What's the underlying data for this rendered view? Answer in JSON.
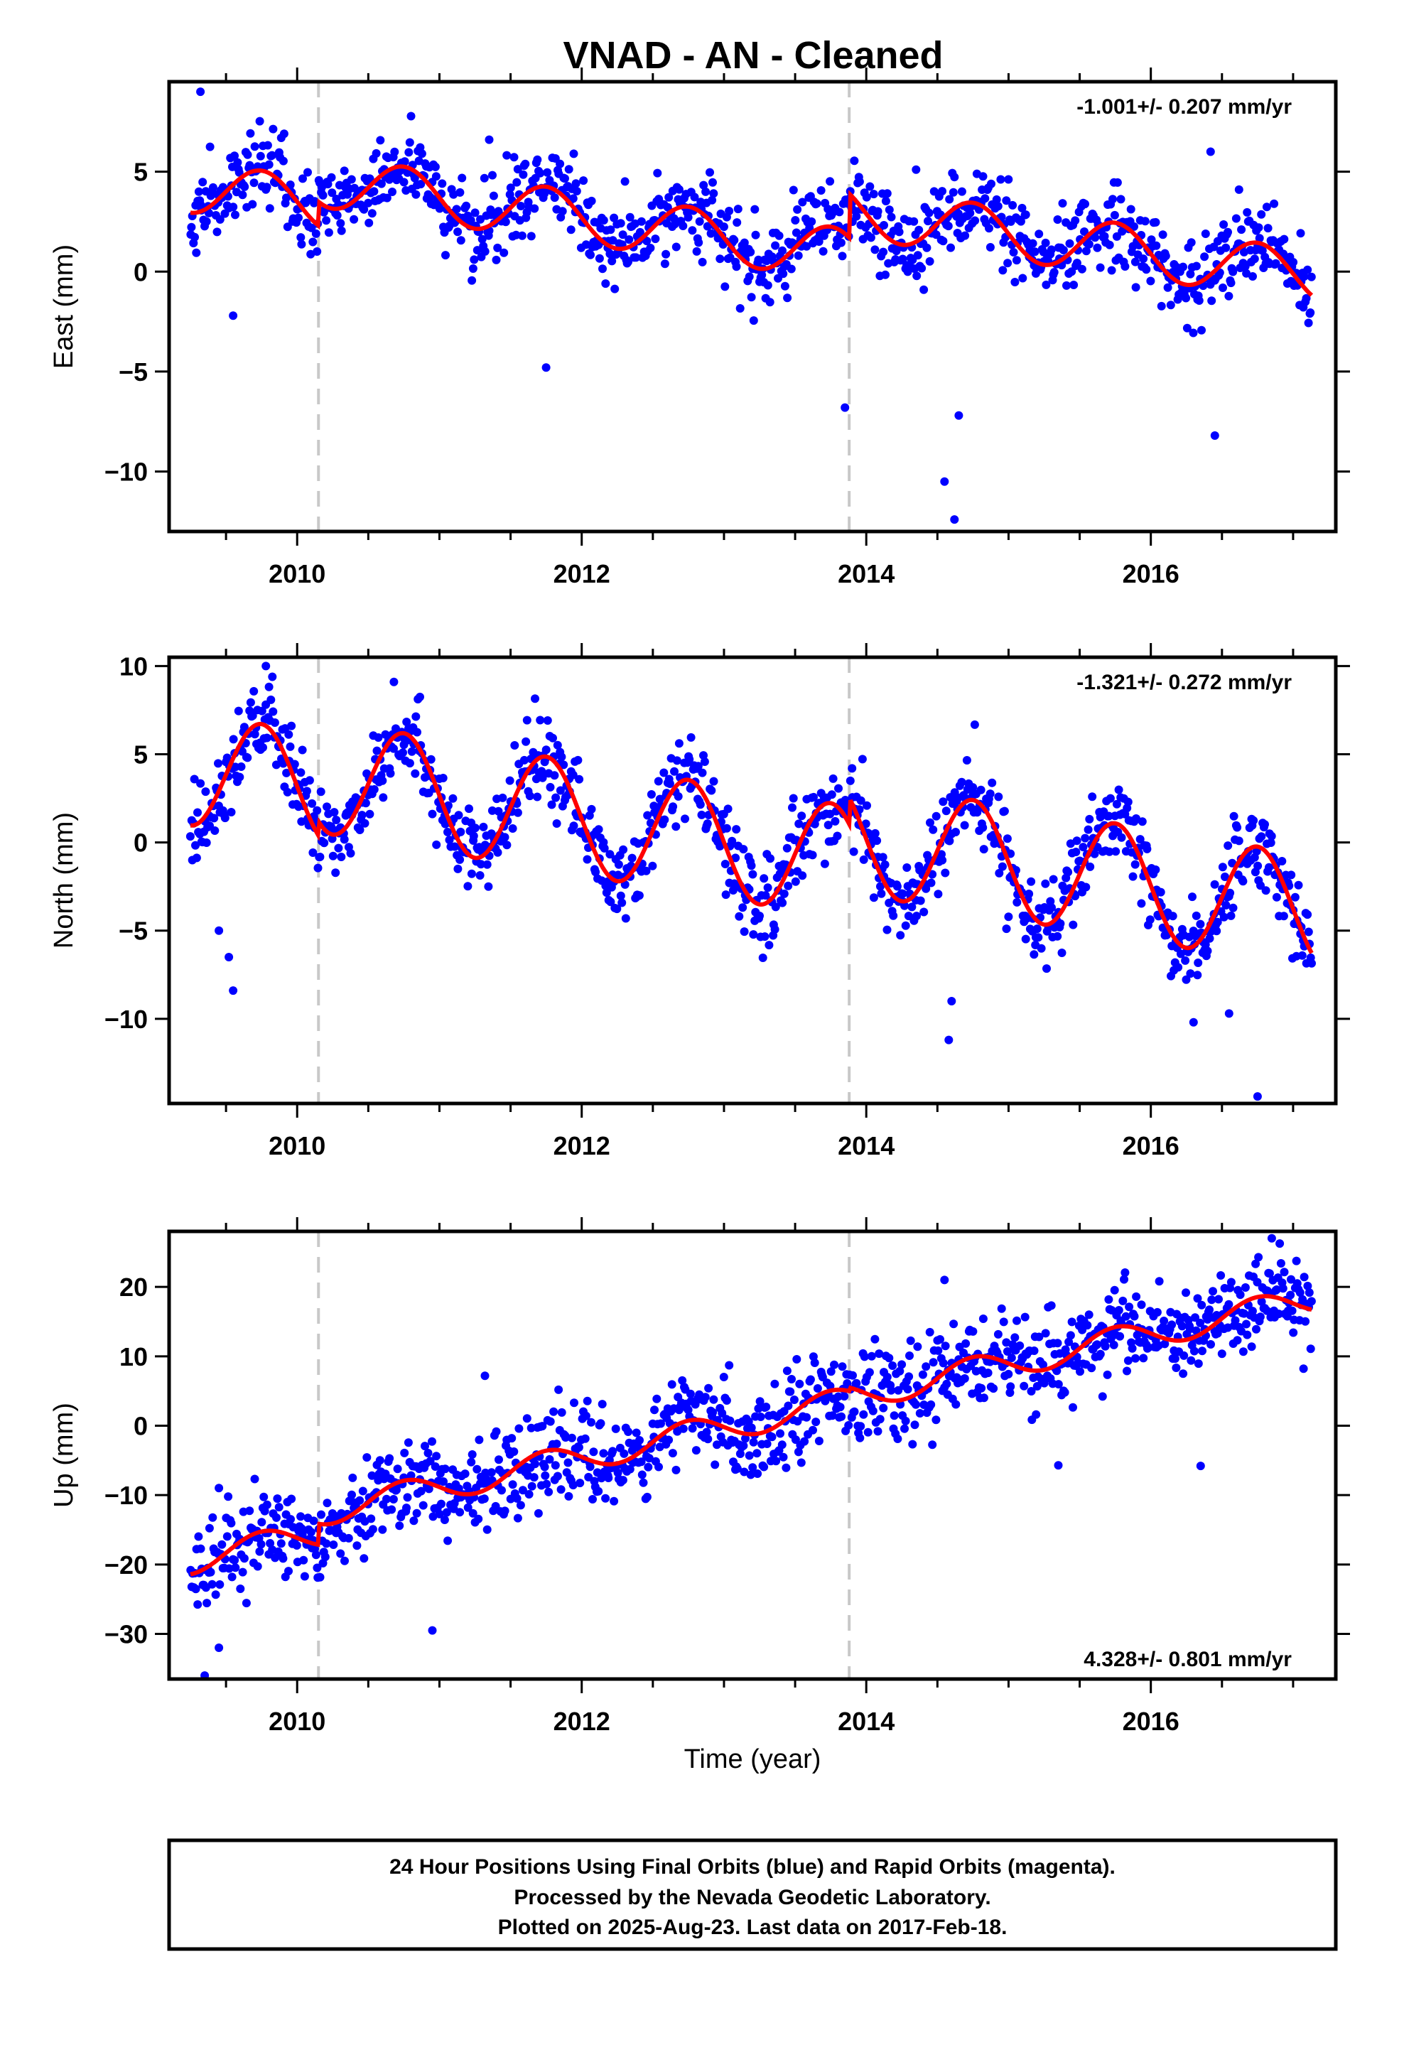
{
  "chart_data": {
    "title": "VNAD  - AN - Cleaned",
    "type": "scatter",
    "colors": {
      "final_orbits": "#0000ff",
      "model_fit": "#ff0000",
      "event_lines": "#c8c8c8",
      "frame": "#000000"
    },
    "xlim": [
      2009.1,
      2017.3
    ],
    "x_ticks": [
      2010,
      2012,
      2014,
      2016
    ],
    "event_lines_x": [
      2010.15,
      2013.88
    ],
    "xlabel": "Time (year)",
    "panels": [
      {
        "ylabel": "East (mm)",
        "ylim": [
          -13,
          9.5
        ],
        "y_ticks": [
          5,
          0,
          -5,
          -10
        ],
        "rate_label": "-1.001+/- 0.207 mm/yr",
        "rate_label_position": "top-right",
        "trend": {
          "offset_2009": 4.5,
          "rate": -1.001,
          "amplitude": 1.3,
          "steps": [
            [
              2010.15,
              1.2
            ],
            [
              2013.88,
              2.2
            ]
          ]
        },
        "scatter_sd": 1.0,
        "outliers": [
          [
            2009.32,
            9.0
          ],
          [
            2009.55,
            -2.2
          ],
          [
            2014.62,
            -12.4
          ],
          [
            2014.55,
            -10.5
          ],
          [
            2014.65,
            -7.2
          ],
          [
            2013.85,
            -6.8
          ],
          [
            2016.45,
            -8.2
          ],
          [
            2016.42,
            6.0
          ],
          [
            2011.35,
            6.6
          ],
          [
            2014.35,
            5.1
          ],
          [
            2016.62,
            4.1
          ],
          [
            2011.75,
            -4.8
          ]
        ]
      },
      {
        "ylabel": "North (mm)",
        "ylim": [
          -14.8,
          10.5
        ],
        "y_ticks": [
          10,
          5,
          0,
          -5,
          -10
        ],
        "rate_label": "-1.321+/- 0.272 mm/yr",
        "rate_label_position": "top-right",
        "trend": {
          "offset_2009": 4.5,
          "rate": -1.321,
          "amplitude": 3.2,
          "steps": [
            [
              2010.15,
              0.8
            ],
            [
              2013.88,
              1.5
            ]
          ]
        },
        "scatter_sd": 1.2,
        "outliers": [
          [
            2009.55,
            -8.4
          ],
          [
            2009.52,
            -6.5
          ],
          [
            2009.78,
            10.0
          ],
          [
            2010.68,
            9.1
          ],
          [
            2014.58,
            -11.2
          ],
          [
            2014.6,
            -9.0
          ],
          [
            2016.75,
            -14.4
          ],
          [
            2016.55,
            -9.7
          ],
          [
            2016.3,
            -10.2
          ],
          [
            2009.45,
            -5.0
          ],
          [
            2013.9,
            4.2
          ]
        ]
      },
      {
        "ylabel": "Up (mm)",
        "ylim": [
          -36.5,
          28
        ],
        "y_ticks": [
          20,
          10,
          0,
          -10,
          -20,
          -30
        ],
        "rate_label": "4.328+/- 0.801 mm/yr",
        "rate_label_position": "bottom-right",
        "trend": {
          "offset_2009": -20.5,
          "rate": 4.328,
          "amplitude": 2.0,
          "steps": [
            [
              2010.15,
              3.0
            ],
            [
              2013.88,
              0.5
            ]
          ]
        },
        "scatter_sd": 3.2,
        "outliers": [
          [
            2009.35,
            -36.0
          ],
          [
            2016.85,
            27.0
          ],
          [
            2011.32,
            7.2
          ],
          [
            2014.55,
            21.0
          ],
          [
            2015.35,
            -5.7
          ],
          [
            2016.35,
            -5.8
          ],
          [
            2010.95,
            -29.5
          ],
          [
            2009.45,
            -32.0
          ]
        ]
      }
    ],
    "points_per_panel": 1100
  },
  "footer": {
    "line1": "24 Hour Positions Using Final Orbits (blue) and Rapid Orbits (magenta).",
    "line2": "Processed by the Nevada Geodetic Laboratory.",
    "line3": "Plotted on 2025-Aug-23. Last data on 2017-Feb-18."
  }
}
